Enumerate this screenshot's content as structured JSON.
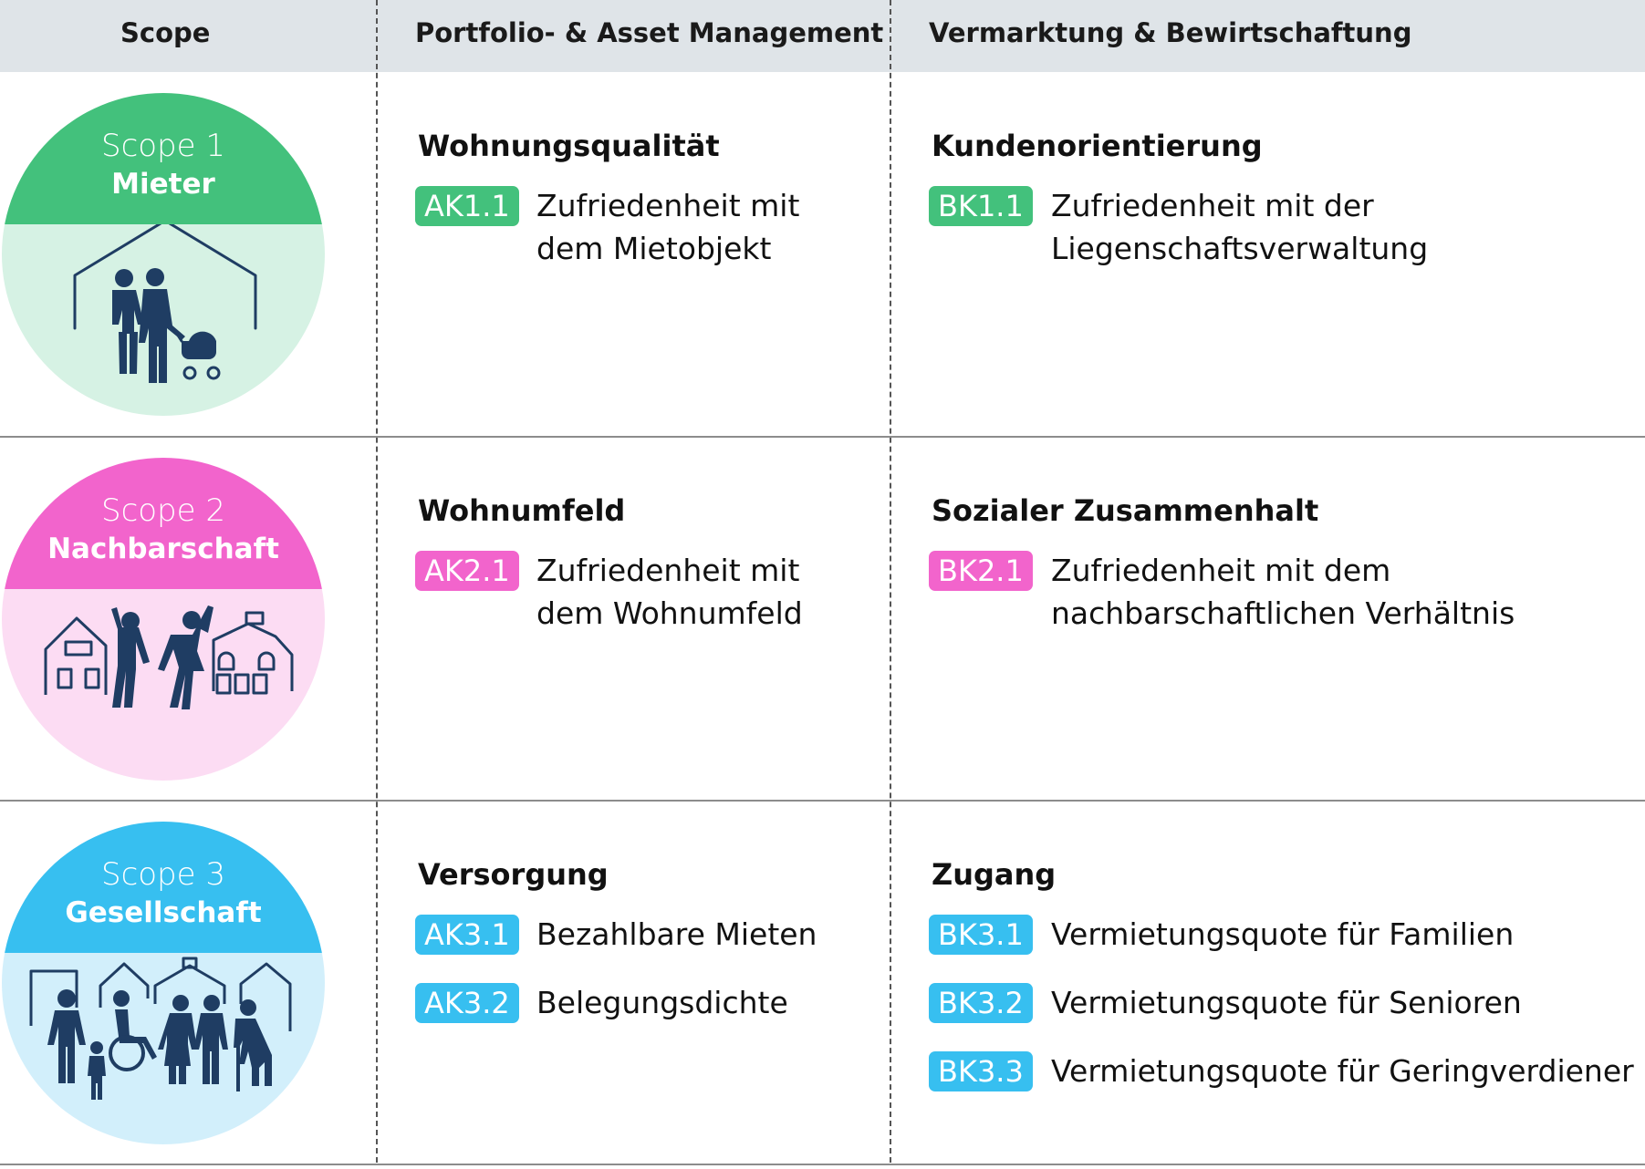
{
  "header": {
    "scope": "Scope",
    "col_a": "Portfolio- & Asset Management",
    "col_b": "Vermarktung & Bewirtschaftung"
  },
  "colors": {
    "header_bg": "#dfe4e8",
    "scope1_dark": "#43c17c",
    "scope1_light": "#d6f2e4",
    "scope2_dark": "#f264cc",
    "scope2_light": "#fcdcf3",
    "scope3_dark": "#37bff0",
    "scope3_light": "#d2effb",
    "icon": "#1f3d63"
  },
  "rows": [
    {
      "scope_num": "Scope 1",
      "scope_name": "Mieter",
      "illustration": "family-with-stroller-in-house-icon",
      "a": {
        "title": "Wohnungsqualität",
        "items": [
          {
            "code": "AK1.1",
            "line1": "Zufriedenheit mit",
            "line2": "dem Mietobjekt"
          }
        ]
      },
      "b": {
        "title": "Kundenorientierung",
        "items": [
          {
            "code": "BK1.1",
            "line1": "Zufriedenheit mit der",
            "line2": "Liegenschaftsverwaltung"
          }
        ]
      }
    },
    {
      "scope_num": "Scope 2",
      "scope_name": "Nachbarschaft",
      "illustration": "neighbors-waving-between-houses-icon",
      "a": {
        "title": "Wohnumfeld",
        "items": [
          {
            "code": "AK2.1",
            "line1": "Zufriedenheit mit",
            "line2": "dem Wohnumfeld"
          }
        ]
      },
      "b": {
        "title": "Sozialer Zusammenhalt",
        "items": [
          {
            "code": "BK2.1",
            "line1": "Zufriedenheit mit dem",
            "line2": "nachbarschaftlichen Verhältnis"
          }
        ]
      }
    },
    {
      "scope_num": "Scope 3",
      "scope_name": "Gesellschaft",
      "illustration": "diverse-community-in-front-of-houses-icon",
      "a": {
        "title": "Versorgung",
        "items": [
          {
            "code": "AK3.1",
            "line1": "Bezahlbare Mieten"
          },
          {
            "code": "AK3.2",
            "line1": "Belegungsdichte"
          }
        ]
      },
      "b": {
        "title": "Zugang",
        "items": [
          {
            "code": "BK3.1",
            "line1": "Vermietungsquote für Familien"
          },
          {
            "code": "BK3.2",
            "line1": "Vermietungsquote für Senioren"
          },
          {
            "code": "BK3.3",
            "line1": "Vermietungsquote für Geringverdiener"
          }
        ]
      }
    }
  ]
}
